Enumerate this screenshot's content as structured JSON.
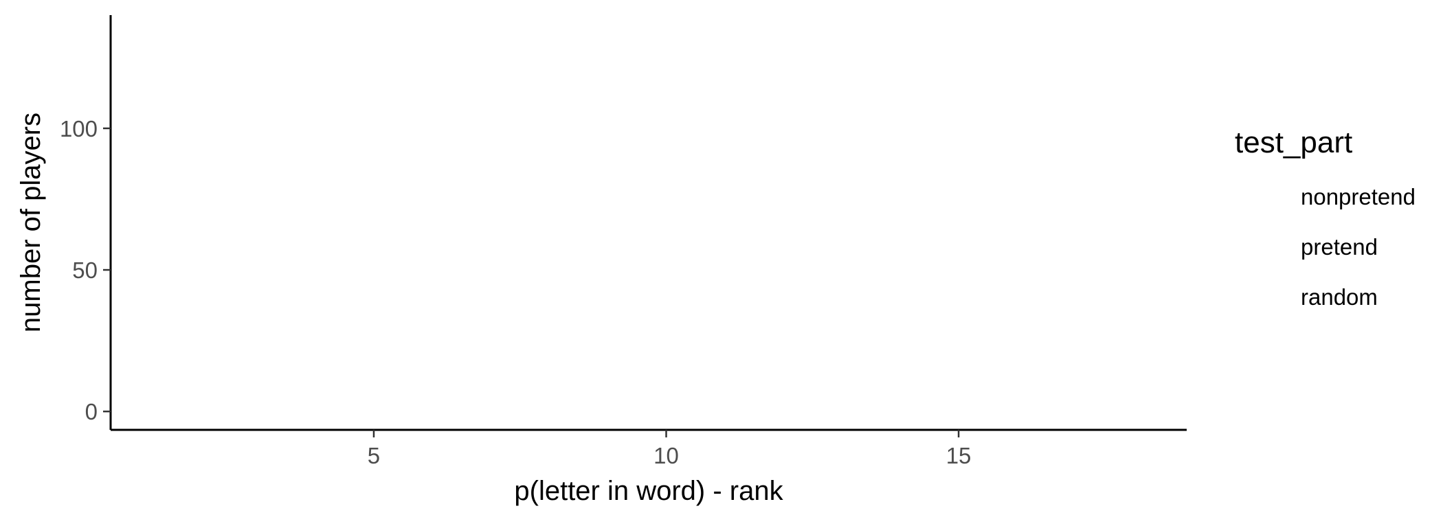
{
  "chart_data": {
    "type": "bar",
    "series": [],
    "xlabel": "p(letter in word) - rank",
    "ylabel": "number of players",
    "xlim": [
      0.5,
      18.9
    ],
    "ylim": [
      -6.5,
      140
    ],
    "x_ticks": [
      {
        "value": 5,
        "label": "5"
      },
      {
        "value": 10,
        "label": "10"
      },
      {
        "value": 15,
        "label": "15"
      }
    ],
    "y_ticks": [
      {
        "value": 0,
        "label": "0"
      },
      {
        "value": 50,
        "label": "50"
      },
      {
        "value": 100,
        "label": "100"
      }
    ],
    "grid": false,
    "legend": {
      "title": "test_part",
      "position": "right",
      "items": [
        "nonpretend",
        "pretend",
        "random"
      ]
    }
  }
}
